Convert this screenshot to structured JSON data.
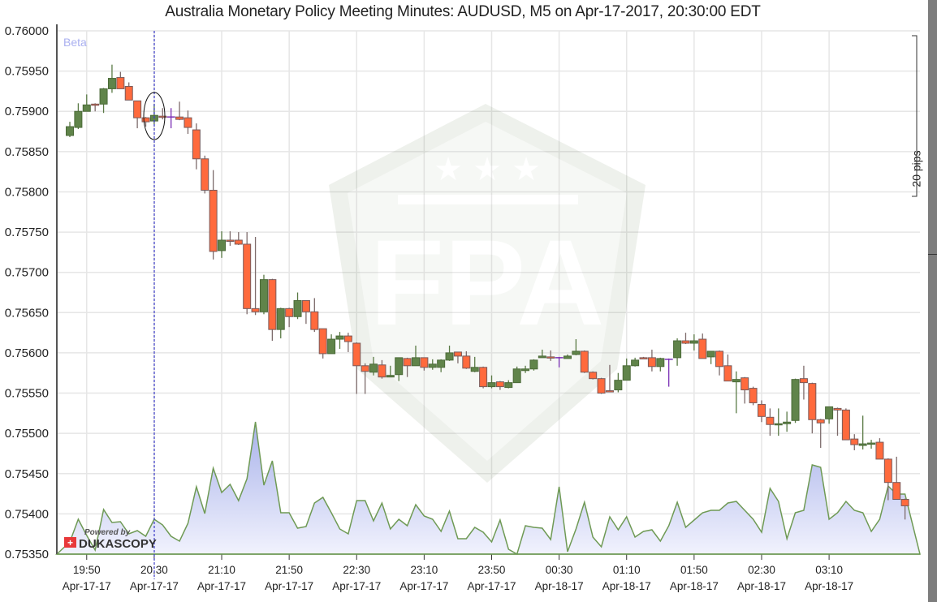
{
  "title": "Australia Monetary Policy Meeting Minutes: AUDUSD, M5 on Apr-17-2017, 20:30:00 EDT",
  "badge": "Beta",
  "pips_label": "20 pips",
  "logo": {
    "powered_by": "Powered by",
    "brand": "DUKASCOPY"
  },
  "watermark": "FPA",
  "colors": {
    "up": "#60844a",
    "down": "#ff6a3d",
    "neutral": "#7a2fb5",
    "event_line": "#3c3cc8",
    "volume_fill": "#aab4ec",
    "volume_line": "#6f9a55"
  },
  "chart_data": {
    "type": "candlestick",
    "title": "Australia Monetary Policy Meeting Minutes: AUDUSD, M5 on Apr-17-2017, 20:30:00 EDT",
    "symbol": "AUDUSD",
    "timeframe": "M5",
    "first_candle_time": "19:40",
    "interval_minutes": 5,
    "event_time": "20:30",
    "ylim": [
      0.7535,
      0.76
    ],
    "y_ticks": [
      "0.76000",
      "0.75950",
      "0.75900",
      "0.75850",
      "0.75800",
      "0.75750",
      "0.75700",
      "0.75650",
      "0.75600",
      "0.75550",
      "0.75500",
      "0.75450",
      "0.75400",
      "0.75350"
    ],
    "x_ticks": [
      {
        "time": "19:50",
        "date": "Apr-17-17",
        "index": 2
      },
      {
        "time": "20:30",
        "date": "Apr-17-17",
        "index": 10
      },
      {
        "time": "21:10",
        "date": "Apr-17-17",
        "index": 18
      },
      {
        "time": "21:50",
        "date": "Apr-17-17",
        "index": 26
      },
      {
        "time": "22:30",
        "date": "Apr-17-17",
        "index": 34
      },
      {
        "time": "23:10",
        "date": "Apr-17-17",
        "index": 42
      },
      {
        "time": "23:50",
        "date": "Apr-17-17",
        "index": 50
      },
      {
        "time": "00:30",
        "date": "Apr-18-17",
        "index": 58
      },
      {
        "time": "01:10",
        "date": "Apr-18-17",
        "index": 66
      },
      {
        "time": "01:50",
        "date": "Apr-18-17",
        "index": 74
      },
      {
        "time": "02:30",
        "date": "Apr-18-17",
        "index": 82
      },
      {
        "time": "03:10",
        "date": "Apr-18-17",
        "index": 90
      }
    ],
    "ohlc_fields": [
      "open",
      "high",
      "low",
      "close"
    ],
    "candles": [
      [
        0.7587,
        0.75887,
        0.75868,
        0.75881
      ],
      [
        0.7588,
        0.7591,
        0.75878,
        0.759
      ],
      [
        0.759,
        0.75921,
        0.759,
        0.75908
      ],
      [
        0.75909,
        0.7591,
        0.759,
        0.75908
      ],
      [
        0.75909,
        0.75929,
        0.75898,
        0.75928
      ],
      [
        0.75928,
        0.75958,
        0.75923,
        0.75941
      ],
      [
        0.75942,
        0.75949,
        0.75928,
        0.75928
      ],
      [
        0.75931,
        0.75936,
        0.75914,
        0.75914
      ],
      [
        0.75913,
        0.75913,
        0.75879,
        0.75892
      ],
      [
        0.75892,
        0.75893,
        0.75881,
        0.75887
      ],
      [
        0.75888,
        0.75909,
        0.75884,
        0.75895
      ],
      [
        0.75894,
        0.75904,
        0.7589,
        0.75893
      ],
      [
        0.75893,
        0.75904,
        0.75879,
        0.75893
      ],
      [
        0.75893,
        0.75912,
        0.75889,
        0.7589
      ],
      [
        0.75892,
        0.75901,
        0.75872,
        0.7588
      ],
      [
        0.75877,
        0.75885,
        0.75828,
        0.75841
      ],
      [
        0.75841,
        0.75845,
        0.75798,
        0.75802
      ],
      [
        0.75802,
        0.75827,
        0.75716,
        0.75726
      ],
      [
        0.75727,
        0.75751,
        0.75718,
        0.7574
      ],
      [
        0.7574,
        0.75751,
        0.75733,
        0.75739
      ],
      [
        0.7574,
        0.7575,
        0.75734,
        0.75735
      ],
      [
        0.75735,
        0.7575,
        0.75648,
        0.75655
      ],
      [
        0.75655,
        0.75744,
        0.75647,
        0.75651
      ],
      [
        0.75651,
        0.75697,
        0.75648,
        0.75691
      ],
      [
        0.75691,
        0.75692,
        0.75615,
        0.75629
      ],
      [
        0.75629,
        0.75656,
        0.75618,
        0.75655
      ],
      [
        0.75655,
        0.75656,
        0.75632,
        0.75645
      ],
      [
        0.75645,
        0.75675,
        0.75642,
        0.75665
      ],
      [
        0.75665,
        0.75665,
        0.75636,
        0.75651
      ],
      [
        0.75651,
        0.75668,
        0.75626,
        0.75629
      ],
      [
        0.7563,
        0.7563,
        0.75593,
        0.75599
      ],
      [
        0.75599,
        0.75623,
        0.75599,
        0.75617
      ],
      [
        0.75617,
        0.75626,
        0.75605,
        0.75621
      ],
      [
        0.75621,
        0.75625,
        0.75601,
        0.75614
      ],
      [
        0.75612,
        0.75613,
        0.75549,
        0.75584
      ],
      [
        0.75584,
        0.75587,
        0.75549,
        0.75577
      ],
      [
        0.75576,
        0.75595,
        0.75572,
        0.75586
      ],
      [
        0.75585,
        0.75591,
        0.75568,
        0.7557
      ],
      [
        0.7557,
        0.75584,
        0.7557,
        0.75572
      ],
      [
        0.75573,
        0.75594,
        0.75565,
        0.75594
      ],
      [
        0.75593,
        0.75594,
        0.7557,
        0.75584
      ],
      [
        0.75584,
        0.75609,
        0.75584,
        0.75594
      ],
      [
        0.75594,
        0.75594,
        0.75578,
        0.75582
      ],
      [
        0.75582,
        0.75592,
        0.75579,
        0.75586
      ],
      [
        0.75582,
        0.75592,
        0.75576,
        0.75591
      ],
      [
        0.75591,
        0.75609,
        0.7559,
        0.756
      ],
      [
        0.75601,
        0.75601,
        0.75587,
        0.75596
      ],
      [
        0.75596,
        0.75602,
        0.7558,
        0.75581
      ],
      [
        0.75577,
        0.75595,
        0.75576,
        0.75582
      ],
      [
        0.75582,
        0.75583,
        0.75556,
        0.75558
      ],
      [
        0.75558,
        0.75572,
        0.75556,
        0.75563
      ],
      [
        0.75564,
        0.75565,
        0.75554,
        0.75558
      ],
      [
        0.75557,
        0.75566,
        0.75556,
        0.75563
      ],
      [
        0.75563,
        0.75583,
        0.75563,
        0.7558
      ],
      [
        0.75578,
        0.75584,
        0.75575,
        0.7558
      ],
      [
        0.7558,
        0.75592,
        0.75578,
        0.75591
      ],
      [
        0.75594,
        0.75604,
        0.75594,
        0.75596
      ],
      [
        0.75595,
        0.75603,
        0.7559,
        0.75594
      ],
      [
        0.75594,
        0.75595,
        0.75582,
        0.75594
      ],
      [
        0.75593,
        0.75598,
        0.75593,
        0.75596
      ],
      [
        0.75598,
        0.75617,
        0.75597,
        0.75602
      ],
      [
        0.75602,
        0.75603,
        0.75575,
        0.75576
      ],
      [
        0.75576,
        0.75577,
        0.75567,
        0.75568
      ],
      [
        0.75568,
        0.75569,
        0.75549,
        0.7555
      ],
      [
        0.75553,
        0.75585,
        0.75551,
        0.75552
      ],
      [
        0.75554,
        0.75575,
        0.75551,
        0.75566
      ],
      [
        0.75566,
        0.75593,
        0.75566,
        0.75584
      ],
      [
        0.75584,
        0.75594,
        0.75583,
        0.75591
      ],
      [
        0.75594,
        0.75595,
        0.75593,
        0.75593
      ],
      [
        0.75594,
        0.75604,
        0.75577,
        0.75583
      ],
      [
        0.75583,
        0.75594,
        0.75577,
        0.75593
      ],
      [
        0.75592,
        0.75593,
        0.75558,
        0.75592
      ],
      [
        0.75594,
        0.75618,
        0.75584,
        0.75615
      ],
      [
        0.75615,
        0.75625,
        0.75611,
        0.75612
      ],
      [
        0.75612,
        0.75623,
        0.75603,
        0.75615
      ],
      [
        0.75617,
        0.75624,
        0.75593,
        0.75593
      ],
      [
        0.75595,
        0.75602,
        0.75586,
        0.75602
      ],
      [
        0.75602,
        0.75603,
        0.75572,
        0.75583
      ],
      [
        0.75584,
        0.75598,
        0.75565,
        0.75565
      ],
      [
        0.75564,
        0.75577,
        0.75525,
        0.75567
      ],
      [
        0.75569,
        0.7557,
        0.75537,
        0.75554
      ],
      [
        0.75556,
        0.75558,
        0.75535,
        0.75538
      ],
      [
        0.75536,
        0.75541,
        0.75514,
        0.75521
      ],
      [
        0.7552,
        0.75531,
        0.75497,
        0.75511
      ],
      [
        0.75511,
        0.75531,
        0.75497,
        0.75512
      ],
      [
        0.75512,
        0.75527,
        0.75502,
        0.75514
      ],
      [
        0.75516,
        0.75568,
        0.75513,
        0.75567
      ],
      [
        0.75568,
        0.75584,
        0.75542,
        0.75563
      ],
      [
        0.75562,
        0.75563,
        0.755,
        0.75517
      ],
      [
        0.75517,
        0.75518,
        0.75482,
        0.75513
      ],
      [
        0.75518,
        0.75533,
        0.75512,
        0.75533
      ],
      [
        0.75531,
        0.75532,
        0.75497,
        0.75529
      ],
      [
        0.75529,
        0.75531,
        0.75492,
        0.75492
      ],
      [
        0.75493,
        0.75499,
        0.75479,
        0.75486
      ],
      [
        0.75485,
        0.75522,
        0.7548,
        0.75487
      ],
      [
        0.75487,
        0.75492,
        0.75481,
        0.75488
      ],
      [
        0.75489,
        0.75494,
        0.75468,
        0.75468
      ],
      [
        0.75468,
        0.75469,
        0.75417,
        0.75439
      ],
      [
        0.75439,
        0.75471,
        0.75418,
        0.75418
      ],
      [
        0.75418,
        0.75419,
        0.75393,
        0.7541
      ]
    ],
    "volume_relative": [
      15,
      43,
      23,
      5,
      55,
      39,
      40,
      25,
      29,
      22,
      43,
      36,
      22,
      16,
      38,
      83,
      50,
      106,
      76,
      86,
      66,
      93,
      163,
      85,
      115,
      51,
      51,
      32,
      34,
      63,
      70,
      51,
      31,
      25,
      66,
      66,
      41,
      63,
      31,
      43,
      35,
      61,
      47,
      43,
      28,
      53,
      19,
      19,
      33,
      27,
      15,
      42,
      6,
      0,
      35,
      33,
      32,
      18,
      83,
      3,
      31,
      64,
      21,
      9,
      46,
      30,
      46,
      21,
      28,
      30,
      16,
      35,
      64,
      33,
      42,
      51,
      54,
      54,
      63,
      65,
      54,
      43,
      27,
      81,
      65,
      19,
      51,
      54,
      110,
      107,
      43,
      51,
      65,
      54,
      51,
      28,
      43,
      84,
      74,
      74
    ],
    "legend": "none",
    "grid": true
  }
}
